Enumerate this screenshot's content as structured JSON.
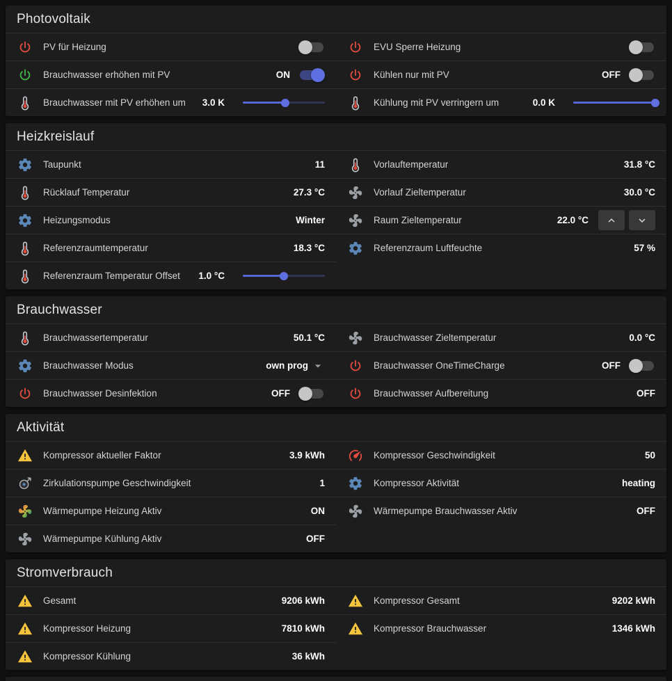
{
  "colors": {
    "red": "#e14b40",
    "green": "#43b649",
    "blue": "#5b87b8",
    "yellow": "#f4c43c",
    "gray": "#9aa0a6",
    "accent": "#5566d6"
  },
  "sections": [
    {
      "title": "Photovoltaik",
      "columns": [
        [
          {
            "icon": "power-icon",
            "color": "red",
            "label": "PV für Heizung",
            "control": "toggle",
            "state": "off"
          },
          {
            "icon": "power-icon",
            "color": "green",
            "label": "Brauchwasser erhöhen mit PV",
            "value": "ON",
            "control": "toggle",
            "state": "on"
          },
          {
            "icon": "thermometer-icon",
            "color": "red",
            "label": "Brauchwasser mit PV erhöhen um",
            "value": "3.0 K",
            "control": "slider",
            "pct": 52
          }
        ],
        [
          {
            "icon": "power-icon",
            "color": "red",
            "label": "EVU Sperre Heizung",
            "control": "toggle",
            "state": "off"
          },
          {
            "icon": "power-icon",
            "color": "red",
            "label": "Kühlen nur mit PV",
            "value": "OFF",
            "control": "toggle",
            "state": "off"
          },
          {
            "icon": "thermometer-icon",
            "color": "red",
            "label": "Kühlung mit PV verringern um",
            "value": "0.0 K",
            "control": "slider",
            "pct": 100
          }
        ]
      ]
    },
    {
      "title": "Heizkreislauf",
      "columns": [
        [
          {
            "icon": "gear-icon",
            "color": "blue",
            "label": "Taupunkt",
            "value": "11"
          },
          {
            "icon": "thermometer-icon",
            "color": "red",
            "label": "Rücklauf Temperatur",
            "value": "27.3 °C"
          },
          {
            "icon": "gear-icon",
            "color": "blue",
            "label": "Heizungsmodus",
            "value": "Winter"
          },
          {
            "icon": "thermometer-icon",
            "color": "red",
            "label": "Referenzraumtemperatur",
            "value": "18.3 °C"
          },
          {
            "icon": "thermometer-icon",
            "color": "red",
            "label": "Referenzraum Temperatur Offset",
            "value": "1.0 °C",
            "control": "slider",
            "pct": 50
          }
        ],
        [
          {
            "icon": "thermometer-icon",
            "color": "red",
            "label": "Vorlauftemperatur",
            "value": "31.8 °C"
          },
          {
            "icon": "fan-icon",
            "color": "gray",
            "label": "Vorlauf Zieltemperatur",
            "value": "30.0 °C"
          },
          {
            "icon": "fan-icon",
            "color": "gray",
            "label": "Raum Zieltemperatur",
            "value": "22.0 °C",
            "control": "stepper"
          },
          {
            "icon": "gear-icon",
            "color": "blue",
            "label": "Referenzraum Luftfeuchte",
            "value": "57 %"
          }
        ]
      ]
    },
    {
      "title": "Brauchwasser",
      "columns": [
        [
          {
            "icon": "thermometer-icon",
            "color": "red",
            "label": "Brauchwassertemperatur",
            "value": "50.1 °C"
          },
          {
            "icon": "gear-icon",
            "color": "blue",
            "label": "Brauchwasser Modus",
            "value": "own prog",
            "control": "select"
          },
          {
            "icon": "power-icon",
            "color": "red",
            "label": "Brauchwasser Desinfektion",
            "value": "OFF",
            "control": "toggle",
            "state": "off"
          }
        ],
        [
          {
            "icon": "fan-icon",
            "color": "gray",
            "label": "Brauchwasser Zieltemperatur",
            "value": "0.0 °C"
          },
          {
            "icon": "power-icon",
            "color": "red",
            "label": "Brauchwasser OneTimeCharge",
            "value": "OFF",
            "control": "toggle",
            "state": "off"
          },
          {
            "icon": "power-icon",
            "color": "red",
            "label": "Brauchwasser Aufbereitung",
            "value": "OFF"
          }
        ]
      ]
    },
    {
      "title": "Aktivität",
      "columns": [
        [
          {
            "icon": "alert-icon",
            "color": "yellow",
            "label": "Kompressor aktueller Faktor",
            "value": "3.9 kWh"
          },
          {
            "icon": "pump-icon",
            "color": "gray",
            "label": "Zirkulationspumpe Geschwindigkeit",
            "value": "1"
          },
          {
            "icon": "fan-icon",
            "color": "multi",
            "label": "Wärmepumpe Heizung Aktiv",
            "value": "ON"
          },
          {
            "icon": "fan-icon",
            "color": "gray",
            "label": "Wärmepumpe Kühlung Aktiv",
            "value": "OFF"
          }
        ],
        [
          {
            "icon": "gauge-icon",
            "color": "red",
            "label": "Kompressor Geschwindigkeit",
            "value": "50"
          },
          {
            "icon": "gear-icon",
            "color": "blue",
            "label": "Kompressor Aktivität",
            "value": "heating"
          },
          {
            "icon": "fan-icon",
            "color": "gray",
            "label": "Wärmepumpe Brauchwasser Aktiv",
            "value": "OFF"
          }
        ]
      ]
    },
    {
      "title": "Stromverbrauch",
      "columns": [
        [
          {
            "icon": "alert-icon",
            "color": "yellow",
            "label": "Gesamt",
            "value": "9206 kWh"
          },
          {
            "icon": "alert-icon",
            "color": "yellow",
            "label": "Kompressor Heizung",
            "value": "7810 kWh"
          },
          {
            "icon": "alert-icon",
            "color": "yellow",
            "label": "Kompressor Kühlung",
            "value": "36 kWh"
          }
        ],
        [
          {
            "icon": "alert-icon",
            "color": "yellow",
            "label": "Kompressor Gesamt",
            "value": "9202 kWh"
          },
          {
            "icon": "alert-icon",
            "color": "yellow",
            "label": "Kompressor Brauchwasser",
            "value": "1346 kWh"
          }
        ]
      ]
    }
  ]
}
